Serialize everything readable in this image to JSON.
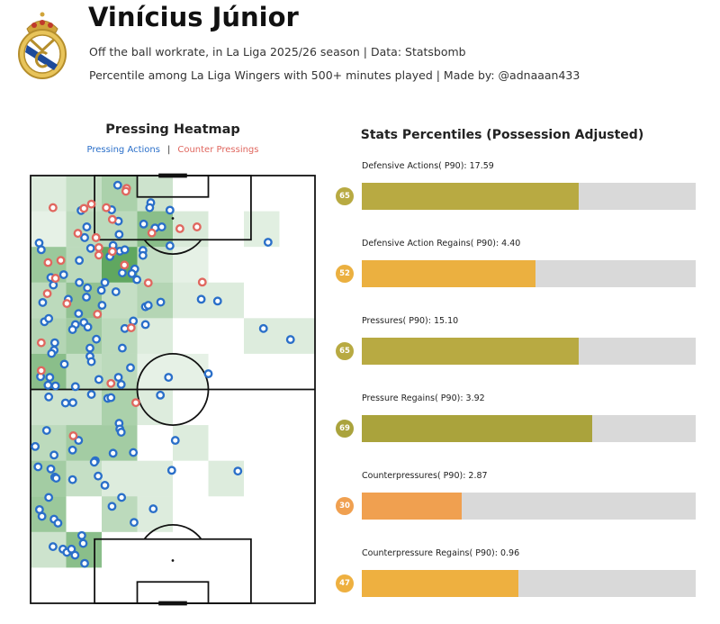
{
  "header": {
    "title": "Vinícius Júnior",
    "subtitle_1": "Off the ball workrate, in La Liga 2025/26 season | Data: Statsbomb",
    "subtitle_2": "Percentile among La Liga Wingers with 500+ minutes played | Made by: @adnaaan433",
    "logo": "real-madrid-crest"
  },
  "chart_data": [
    {
      "type": "heatmap",
      "title": "Pressing Heatmap",
      "legend": {
        "pressing": "Pressing Actions",
        "counter": "Counter Pressings",
        "separator": "|"
      },
      "colors": {
        "pressing": "#2a6fc9",
        "counter": "#e0675f",
        "heat": "#2e8b2e"
      },
      "pitch": {
        "length": 120,
        "width": 80,
        "orientation": "vertical, attacking upward"
      },
      "grid": {
        "rows": 12,
        "cols": 8
      },
      "heatmap_intensity_top_to_bottom": [
        [
          0.1,
          0.25,
          0.4,
          0.2,
          0,
          0,
          0,
          0
        ],
        [
          0.05,
          0.3,
          0.3,
          0.6,
          0.12,
          0,
          0.08,
          0
        ],
        [
          0.5,
          0.3,
          0.85,
          0.25,
          0.05,
          0,
          0,
          0
        ],
        [
          0.3,
          0.55,
          0.25,
          0.35,
          0.1,
          0.1,
          0,
          0
        ],
        [
          0.35,
          0.45,
          0.3,
          0.1,
          0,
          0,
          0.1,
          0.1
        ],
        [
          0.6,
          0.25,
          0.3,
          0.05,
          0.05,
          0,
          0,
          0
        ],
        [
          0.2,
          0.2,
          0.4,
          0.1,
          0,
          0,
          0,
          0
        ],
        [
          0.3,
          0.45,
          0.45,
          0,
          0.1,
          0,
          0,
          0
        ],
        [
          0.45,
          0.25,
          0.1,
          0.1,
          0,
          0.1,
          0,
          0
        ],
        [
          0.5,
          0,
          0.3,
          0.1,
          0,
          0,
          0,
          0
        ],
        [
          0.2,
          0.6,
          0,
          0,
          0,
          0,
          0,
          0
        ],
        [
          0,
          0,
          0,
          0,
          0,
          0,
          0,
          0
        ]
      ],
      "counter_pressings": [
        [
          6.3,
          111
        ],
        [
          15,
          110.8
        ],
        [
          17.1,
          112
        ],
        [
          21.3,
          111
        ],
        [
          27,
          116.4
        ],
        [
          26.8,
          115.6
        ],
        [
          23,
          107.7
        ],
        [
          13.3,
          103.8
        ],
        [
          18.4,
          102.6
        ],
        [
          19.2,
          99.8
        ],
        [
          19.2,
          97.7
        ],
        [
          23,
          98.7
        ],
        [
          34.1,
          103.9
        ],
        [
          42,
          105.1
        ],
        [
          46.8,
          105.6
        ],
        [
          4.9,
          95.6
        ],
        [
          8.5,
          96.2
        ],
        [
          7,
          91.2
        ],
        [
          26.4,
          94.9
        ],
        [
          33.1,
          89.9
        ],
        [
          48.3,
          90.1
        ],
        [
          4.7,
          86.9
        ],
        [
          10.2,
          84.1
        ],
        [
          18.8,
          81.1
        ],
        [
          28.3,
          77.3
        ],
        [
          3,
          73.1
        ],
        [
          3,
          65.3
        ],
        [
          22.6,
          61.7
        ],
        [
          29.6,
          56.3
        ],
        [
          12,
          47
        ]
      ],
      "pressing_actions": [
        [
          24.5,
          117.3
        ],
        [
          14.2,
          110.2
        ],
        [
          22.8,
          110.4
        ],
        [
          33.8,
          112.4
        ],
        [
          33.5,
          111
        ],
        [
          39.2,
          110.3
        ],
        [
          24.7,
          107.2
        ],
        [
          15.8,
          105.6
        ],
        [
          15.2,
          102.6
        ],
        [
          24.9,
          103.5
        ],
        [
          31.8,
          106.4
        ],
        [
          35,
          105.3
        ],
        [
          36.9,
          105.6
        ],
        [
          2.4,
          101.1
        ],
        [
          3,
          99.2
        ],
        [
          16.9,
          99.6
        ],
        [
          23.2,
          100.4
        ],
        [
          22.3,
          97.3
        ],
        [
          25.1,
          98.8
        ],
        [
          26.5,
          99.2
        ],
        [
          31.6,
          99
        ],
        [
          31.6,
          97.6
        ],
        [
          39.2,
          100.3
        ],
        [
          13.7,
          96.2
        ],
        [
          29.3,
          93.8
        ],
        [
          28.5,
          92.5
        ],
        [
          25.8,
          92.7
        ],
        [
          29.9,
          90.8
        ],
        [
          5.7,
          91.4
        ],
        [
          6.4,
          89.3
        ],
        [
          9.3,
          92.2
        ],
        [
          13.7,
          90
        ],
        [
          16,
          88.5
        ],
        [
          20.9,
          90
        ],
        [
          19.9,
          87.8
        ],
        [
          24,
          87.4
        ],
        [
          15.7,
          85.9
        ],
        [
          10.6,
          85.3
        ],
        [
          3.4,
          84.4
        ],
        [
          20.1,
          83.6
        ],
        [
          32.3,
          83.2
        ],
        [
          33.1,
          83.6
        ],
        [
          36.6,
          84.5
        ],
        [
          48,
          85.3
        ],
        [
          52.6,
          84.8
        ],
        [
          66.8,
          101.3
        ],
        [
          65.5,
          77.1
        ],
        [
          73.1,
          74
        ],
        [
          3.9,
          79
        ],
        [
          5.1,
          79.9
        ],
        [
          13.5,
          81.3
        ],
        [
          15,
          78.8
        ],
        [
          16.1,
          77.5
        ],
        [
          12.6,
          78.2
        ],
        [
          11.8,
          76.8
        ],
        [
          28.9,
          79.2
        ],
        [
          26.5,
          77.1
        ],
        [
          32.3,
          78.2
        ],
        [
          6.8,
          73.1
        ],
        [
          18.5,
          74.1
        ],
        [
          6.6,
          71
        ],
        [
          5.9,
          70.1
        ],
        [
          16.7,
          71.6
        ],
        [
          25.8,
          71.6
        ],
        [
          16.7,
          69.3
        ],
        [
          17.1,
          67.8
        ],
        [
          9.5,
          67.1
        ],
        [
          28.1,
          66.1
        ],
        [
          38.8,
          63.4
        ],
        [
          50,
          64.4
        ],
        [
          2.8,
          63.6
        ],
        [
          5.4,
          63.4
        ],
        [
          4.9,
          61.2
        ],
        [
          7,
          61
        ],
        [
          12.6,
          60.8
        ],
        [
          19.2,
          62.8
        ],
        [
          24.7,
          63.4
        ],
        [
          25.5,
          61.4
        ],
        [
          5.1,
          57.9
        ],
        [
          9.8,
          56.2
        ],
        [
          11.9,
          56.3
        ],
        [
          17.1,
          58.6
        ],
        [
          21.7,
          57.5
        ],
        [
          22.6,
          57.7
        ],
        [
          36.5,
          58.4
        ],
        [
          24.9,
          50.5
        ],
        [
          25.1,
          48.9
        ],
        [
          25.5,
          48
        ],
        [
          13.5,
          45.7
        ],
        [
          11.8,
          43
        ],
        [
          23.2,
          42.1
        ],
        [
          28.9,
          42.3
        ],
        [
          40.7,
          45.7
        ],
        [
          1.3,
          44
        ],
        [
          6.6,
          41.6
        ],
        [
          4.5,
          48.5
        ],
        [
          18.2,
          40
        ],
        [
          17.9,
          39.6
        ],
        [
          2.1,
          38.3
        ],
        [
          5.7,
          37.7
        ],
        [
          6.8,
          35.4
        ],
        [
          7.2,
          35.1
        ],
        [
          11.8,
          34.7
        ],
        [
          19,
          35.7
        ],
        [
          20.9,
          33.1
        ],
        [
          39.7,
          37.3
        ],
        [
          58.3,
          37.1
        ],
        [
          5.1,
          29.7
        ],
        [
          2.5,
          26.3
        ],
        [
          3.2,
          24.4
        ],
        [
          6.6,
          23.6
        ],
        [
          7.7,
          22.5
        ],
        [
          22.9,
          27.2
        ],
        [
          25.6,
          29.7
        ],
        [
          34.5,
          26.5
        ],
        [
          29.1,
          22.7
        ],
        [
          14.4,
          19
        ],
        [
          14.8,
          16.8
        ],
        [
          6.3,
          15.9
        ],
        [
          9.1,
          15.2
        ],
        [
          10.2,
          14.3
        ],
        [
          11.5,
          15.2
        ],
        [
          12.5,
          13.5
        ],
        [
          15.2,
          11.2
        ]
      ]
    },
    {
      "type": "bar",
      "title": "Stats Percentiles (Possession Adjusted)",
      "xlim": [
        0,
        100
      ],
      "bars": [
        {
          "label": "Defensive Actions( P90): 17.59",
          "percentile": 65,
          "color": "#b8aa42"
        },
        {
          "label": "Defensive Action Regains( P90): 4.40",
          "percentile": 52,
          "color": "#ebb040"
        },
        {
          "label": "Pressures( P90): 15.10",
          "percentile": 65,
          "color": "#b8aa42"
        },
        {
          "label": "Pressure Regains( P90): 3.92",
          "percentile": 69,
          "color": "#aaa33c"
        },
        {
          "label": "Counterpressures( P90): 2.87",
          "percentile": 30,
          "color": "#f0a050"
        },
        {
          "label": "Counterpressure Regains( P90): 0.96",
          "percentile": 47,
          "color": "#eeb040"
        }
      ],
      "track_color": "#d9d9d9"
    }
  ]
}
